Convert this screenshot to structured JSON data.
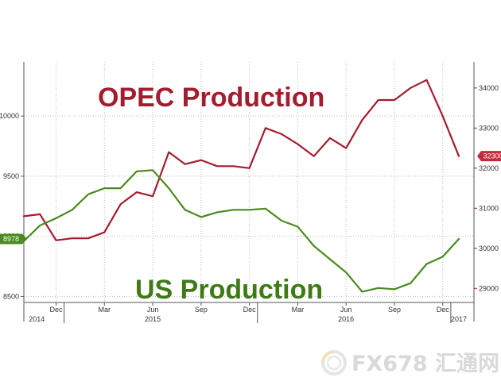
{
  "chart_data": {
    "type": "line",
    "series_labels": {
      "opec": "OPEC Production",
      "us": "US Production"
    },
    "x": [
      "2014-10",
      "2014-11",
      "2014-12",
      "2015-01",
      "2015-02",
      "2015-03",
      "2015-04",
      "2015-05",
      "2015-06",
      "2015-07",
      "2015-08",
      "2015-09",
      "2015-10",
      "2015-11",
      "2015-12",
      "2016-01",
      "2016-02",
      "2016-03",
      "2016-04",
      "2016-05",
      "2016-06",
      "2016-07",
      "2016-08",
      "2016-09",
      "2016-10",
      "2016-11",
      "2016-12",
      "2017-01"
    ],
    "series": [
      {
        "name": "OPEC Production",
        "axis": "right",
        "color": "#a31d2e",
        "values": [
          30800,
          30850,
          30200,
          30250,
          30250,
          30400,
          31100,
          31400,
          31300,
          32400,
          32100,
          32200,
          32050,
          32050,
          32000,
          33000,
          32850,
          32600,
          32300,
          32750,
          32500,
          33200,
          33700,
          33700,
          34000,
          34200,
          33300,
          32300
        ]
      },
      {
        "name": "US Production",
        "axis": "left",
        "color": "#4a8a1e",
        "values": [
          8960,
          9090,
          9150,
          9220,
          9350,
          9400,
          9400,
          9540,
          9550,
          9400,
          9220,
          9160,
          9200,
          9220,
          9220,
          9230,
          9130,
          9080,
          8920,
          8810,
          8700,
          8540,
          8570,
          8560,
          8610,
          8770,
          8830,
          8978
        ]
      }
    ],
    "x_ticks": [
      {
        "label": "Dec",
        "month": 2
      },
      {
        "label": "Mar",
        "month": 5
      },
      {
        "label": "Jun",
        "month": 8
      },
      {
        "label": "Sep",
        "month": 11
      },
      {
        "label": "Dec",
        "month": 14
      },
      {
        "label": "Mar",
        "month": 17
      },
      {
        "label": "Jun",
        "month": 20
      },
      {
        "label": "Sep",
        "month": 23
      },
      {
        "label": "Dec",
        "month": 26
      }
    ],
    "year_labels": [
      {
        "label": "2014",
        "month": 0.8
      },
      {
        "label": "2015",
        "month": 8
      },
      {
        "label": "2016",
        "month": 20
      },
      {
        "label": "2017",
        "month": 27
      }
    ],
    "year_separators": [
      2.5,
      14.5,
      26.5
    ],
    "left_axis": {
      "ticks": [
        8500,
        9000,
        9500,
        10000
      ],
      "ylim": [
        8450,
        10450
      ]
    },
    "right_axis": {
      "ticks": [
        29000,
        30000,
        31000,
        32000,
        33000,
        34000
      ],
      "ylim": [
        28650,
        34650
      ]
    },
    "last_value_badges": [
      {
        "text": "8978",
        "axis": "left",
        "value": 8978,
        "color": "#4a8a1e"
      },
      {
        "text": "32300",
        "axis": "right",
        "value": 32300,
        "color": "#c42a3b"
      }
    ],
    "grid": true,
    "watermark": {
      "text": "FX678 汇通网"
    }
  }
}
